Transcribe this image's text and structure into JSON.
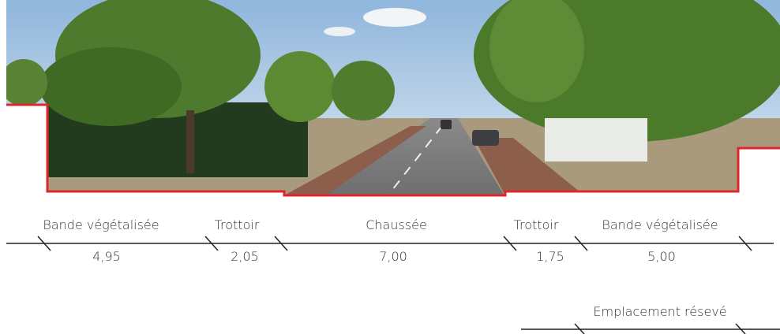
{
  "sections": [
    {
      "label": "Bande végétalisée",
      "width": "4,95"
    },
    {
      "label": "Trottoir",
      "width": "2,05"
    },
    {
      "label": "Chaussée",
      "width": "7,00"
    },
    {
      "label": "Trottoir",
      "width": "1,75"
    },
    {
      "label": "Bande végétalisée",
      "width": "5,00"
    }
  ],
  "reserved": {
    "label": "Emplacement résevé"
  }
}
